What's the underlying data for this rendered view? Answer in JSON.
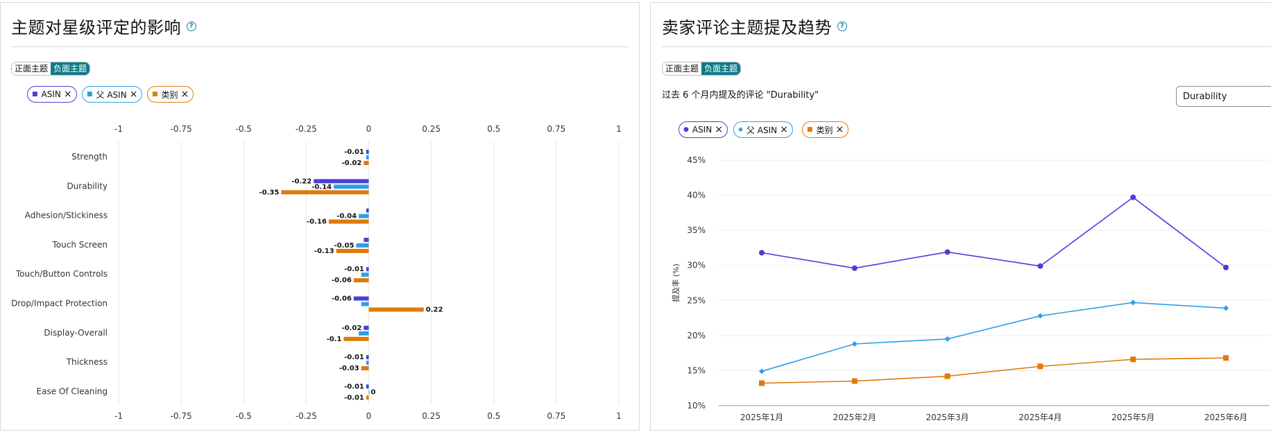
{
  "colors": {
    "asin": "#4a3fd8",
    "parent_asin": "#2d9ee8",
    "category": "#e07a0a",
    "toggle_active": "#0e7a8a"
  },
  "left": {
    "title": "主题对星级评定的影响",
    "help_icon": "?",
    "toggle": {
      "positive": "正面主题",
      "negative": "负面主题",
      "active": "负面主题"
    },
    "chips": [
      {
        "label": "ASIN",
        "marker": "■"
      },
      {
        "label": "父 ASIN",
        "marker": "■"
      },
      {
        "label": "类别",
        "marker": "■"
      }
    ]
  },
  "right": {
    "title": "卖家评论主题提及趋势",
    "help_icon": "?",
    "toggle": {
      "positive": "正面主题",
      "negative": "负面主题",
      "active": "负面主题"
    },
    "subtitle": "过去 6 个月内提及的评论 \"Durability\"",
    "select_value": "Durability",
    "chips": [
      {
        "label": "ASIN",
        "marker": "●"
      },
      {
        "label": "父 ASIN",
        "marker": "◆"
      },
      {
        "label": "类别",
        "marker": "■"
      }
    ]
  },
  "chart_data": [
    {
      "type": "bar",
      "orientation": "horizontal",
      "categories": [
        "Strength",
        "Durability",
        "Adhesion/Stickiness",
        "Touch Screen",
        "Touch/Button Controls",
        "Drop/Impact Protection",
        "Display-Overall",
        "Thickness",
        "Ease Of Cleaning"
      ],
      "series": [
        {
          "name": "ASIN",
          "values": [
            -0.01,
            -0.22,
            -0.01,
            -0.02,
            -0.01,
            -0.06,
            -0.02,
            -0.01,
            -0.01
          ]
        },
        {
          "name": "父 ASIN",
          "values": [
            -0.01,
            -0.14,
            -0.04,
            -0.05,
            -0.03,
            -0.03,
            -0.04,
            -0.01,
            0
          ]
        },
        {
          "name": "类别",
          "values": [
            -0.02,
            -0.35,
            -0.16,
            -0.13,
            -0.06,
            0.22,
            -0.1,
            -0.03,
            -0.01
          ]
        }
      ],
      "data_labels": [
        [
          {
            "text": "-0.01",
            "series": 0
          },
          {
            "text": "-0.02",
            "series": 2
          }
        ],
        [
          {
            "text": "-0.22",
            "series": 0
          },
          {
            "text": "-0.14",
            "series": 1
          },
          {
            "text": "-0.35",
            "series": 2
          }
        ],
        [
          {
            "text": "-0.04",
            "series": 1
          },
          {
            "text": "-0.16",
            "series": 2
          }
        ],
        [
          {
            "text": "-0.05",
            "series": 1
          },
          {
            "text": "-0.13",
            "series": 2
          }
        ],
        [
          {
            "text": "-0.01",
            "series": 0
          },
          {
            "text": "-0.06",
            "series": 2
          }
        ],
        [
          {
            "text": "-0.06",
            "series": 0
          },
          {
            "text": "0.22",
            "series": 2
          }
        ],
        [
          {
            "text": "-0.02",
            "series": 0
          },
          {
            "text": "-0.1",
            "series": 2
          }
        ],
        [
          {
            "text": "-0.01",
            "series": 0
          },
          {
            "text": "-0.03",
            "series": 2
          }
        ],
        [
          {
            "text": "-0.01",
            "series": 0
          },
          {
            "text": "0",
            "series": 1
          },
          {
            "text": "-0.01",
            "series": 2
          }
        ]
      ],
      "xlim": [
        -1,
        1
      ],
      "ticks": [
        "-1",
        "-0.75",
        "-0.5",
        "-0.25",
        "0",
        "0.25",
        "0.5",
        "0.75",
        "1"
      ],
      "tick_values": [
        -1,
        -0.75,
        -0.5,
        -0.25,
        0,
        0.25,
        0.5,
        0.75,
        1
      ],
      "grid": true
    },
    {
      "type": "line",
      "x": [
        "2025年1月",
        "2025年2月",
        "2025年3月",
        "2025年4月",
        "2025年5月",
        "2025年6月"
      ],
      "series": [
        {
          "name": "ASIN",
          "marker": "circle",
          "values": [
            31.8,
            29.6,
            31.9,
            29.9,
            39.7,
            29.7
          ]
        },
        {
          "name": "父 ASIN",
          "marker": "diamond",
          "values": [
            14.9,
            18.8,
            19.5,
            22.8,
            24.7,
            23.9
          ]
        },
        {
          "name": "类别",
          "marker": "square",
          "values": [
            13.2,
            13.5,
            14.2,
            15.6,
            16.6,
            16.8
          ]
        }
      ],
      "ylabel": "提及率 (%)",
      "ylim": [
        10,
        45
      ],
      "yticks": [
        "10%",
        "15%",
        "20%",
        "25%",
        "30%",
        "35%",
        "40%",
        "45%"
      ],
      "ytick_values": [
        10,
        15,
        20,
        25,
        30,
        35,
        40,
        45
      ],
      "grid": true
    }
  ]
}
